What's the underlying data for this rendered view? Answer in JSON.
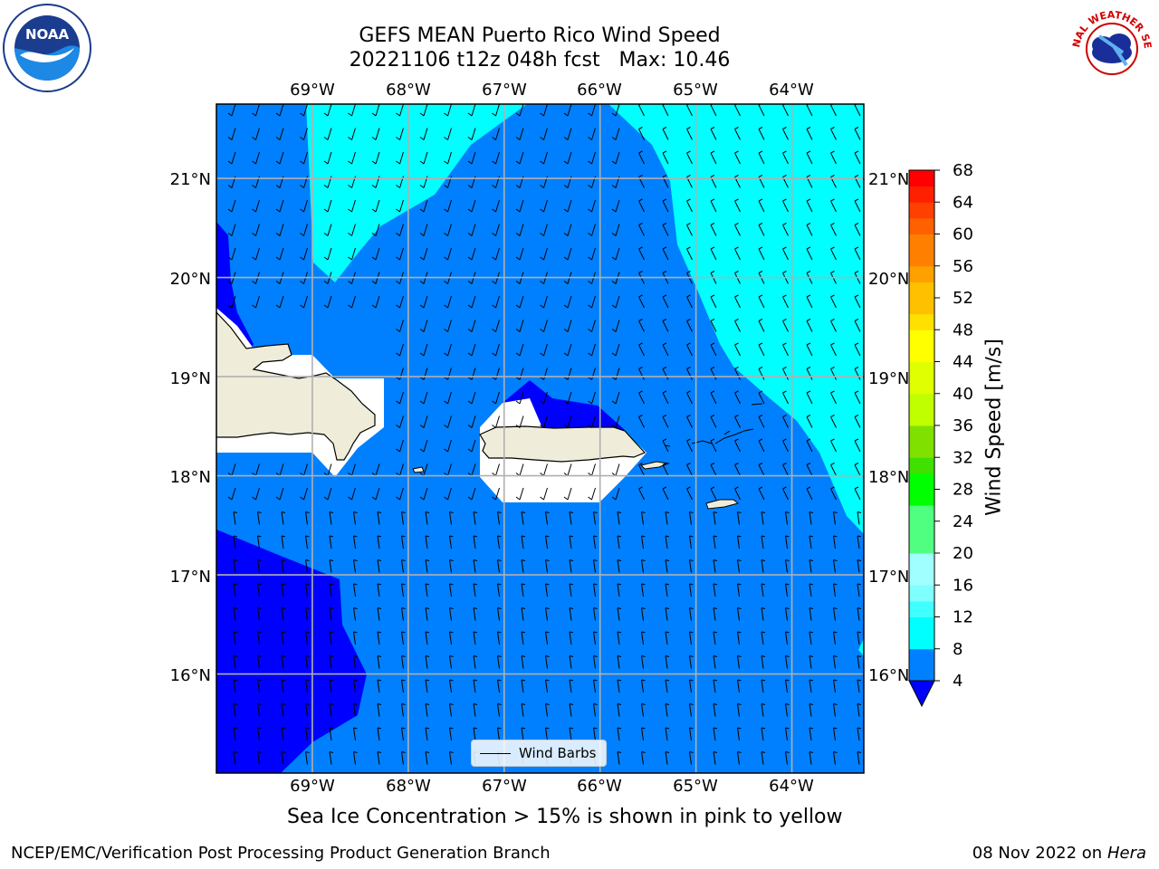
{
  "title": {
    "line1": "GEFS MEAN Puerto Rico Wind Speed",
    "line2": "20221106 t12z 048h fcst   Max: 10.46"
  },
  "logos": {
    "left": {
      "icon": "noaa-logo",
      "text": "NOAA"
    },
    "right": {
      "icon": "nws-logo",
      "text": "NATIONAL WEATHER SERVICE"
    }
  },
  "map": {
    "lon_labels": [
      "69°W",
      "68°W",
      "67°W",
      "66°W",
      "65°W",
      "64°W"
    ],
    "lat_labels": [
      "21°N",
      "20°N",
      "19°N",
      "18°N",
      "17°N",
      "16°N"
    ],
    "legend": {
      "label": "Wind Barbs"
    }
  },
  "chart_data": {
    "type": "heatmap",
    "title": "GEFS MEAN Puerto Rico Wind Speed",
    "subtitle": "20221106 t12z 048h fcst   Max: 10.46",
    "lon_range": [
      -70.0,
      -63.25
    ],
    "lat_range": [
      15.0,
      21.75
    ],
    "lon_ticks": [
      -69,
      -68,
      -67,
      -66,
      -65,
      -64
    ],
    "lat_ticks": [
      16,
      17,
      18,
      19,
      20,
      21
    ],
    "grid": true,
    "colorbar": {
      "label": "Wind Speed [m/s]",
      "ticks": [
        4,
        8,
        12,
        16,
        20,
        24,
        28,
        32,
        36,
        40,
        44,
        48,
        52,
        56,
        60,
        64,
        68
      ],
      "levels": [
        4,
        8,
        10,
        12,
        14,
        16,
        18,
        20,
        24,
        26,
        28,
        30,
        32,
        36,
        38,
        40,
        42,
        44,
        46,
        48,
        50,
        52,
        54,
        56,
        58,
        60,
        62,
        64,
        66,
        68
      ],
      "colors": [
        "#0080ff",
        "#00ffff",
        "#00ffff",
        "#40ffff",
        "#80ffff",
        "#a0ffff",
        "#a0ffff",
        "#50ff80",
        "#50ff80",
        "#00ff00",
        "#00ff00",
        "#40e000",
        "#80e000",
        "#c0ff00",
        "#c0ff00",
        "#e0ff00",
        "#e0ff00",
        "#ffff00",
        "#ffff00",
        "#ffe000",
        "#ffc000",
        "#ffc000",
        "#ffa000",
        "#ff8000",
        "#ff8000",
        "#ff6000",
        "#ff4000",
        "#ff2000",
        "#ff0000"
      ],
      "under_color": "#0000ff",
      "extend": "min"
    },
    "wind_speed_colors": {
      "below_4": "#0000ff",
      "4_to_8": "#0080ff",
      "8_to_12": "#00ffff",
      "land": "#efedda"
    },
    "barb_legend": "Wind Barbs"
  },
  "footnote": "Sea Ice Concentration > 15% is shown in pink to yellow",
  "credit": {
    "left": "NCEP/EMC/Verification Post Processing Product Generation Branch",
    "date": "08 Nov 2022 on",
    "host": "Hera"
  }
}
